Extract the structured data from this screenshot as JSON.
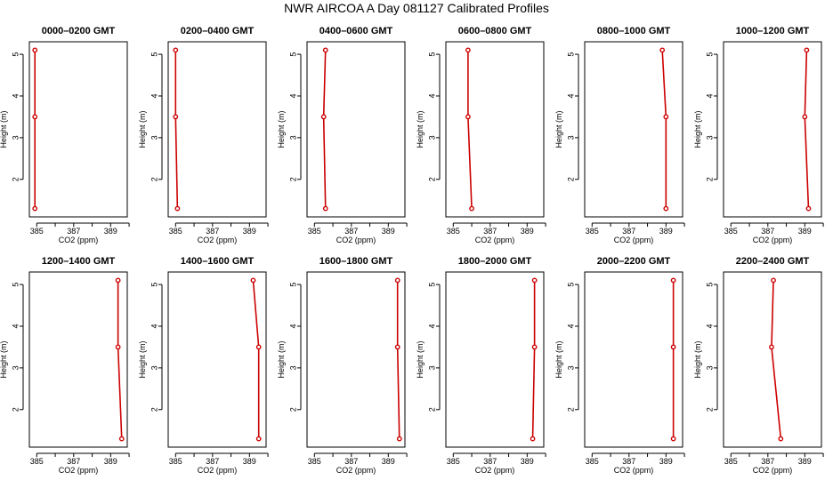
{
  "title": "NWR AIRCOA A  Day 081127  Calibrated Profiles",
  "colors": {
    "line": "#cc0000",
    "axis": "#000000"
  },
  "common": {
    "xlabel": "CO2 (ppm)",
    "ylabel": "Height (m)",
    "xlim": [
      384.6,
      389.9
    ],
    "ylim": [
      1.1,
      5.3
    ],
    "xticks": [
      385,
      386,
      387,
      388,
      389,
      390
    ],
    "xtick_labels": [
      "385",
      "",
      "387",
      "",
      "389",
      ""
    ],
    "yticks": [
      2,
      3,
      4,
      5
    ],
    "ytick_labels": [
      "2",
      "3",
      "4",
      "5"
    ]
  },
  "chart_data": [
    {
      "type": "line",
      "title": "0000–0200 GMT",
      "x": [
        384.9,
        384.9,
        384.9
      ],
      "y": [
        1.3,
        3.5,
        5.1
      ]
    },
    {
      "type": "line",
      "title": "0200–0400 GMT",
      "x": [
        385.1,
        385.0,
        385.0
      ],
      "y": [
        1.3,
        3.5,
        5.1
      ]
    },
    {
      "type": "line",
      "title": "0400–0600 GMT",
      "x": [
        385.6,
        385.5,
        385.6
      ],
      "y": [
        1.3,
        3.5,
        5.1
      ]
    },
    {
      "type": "line",
      "title": "0600–0800 GMT",
      "x": [
        386.0,
        385.8,
        385.8
      ],
      "y": [
        1.3,
        3.5,
        5.1
      ]
    },
    {
      "type": "line",
      "title": "0800–1000 GMT",
      "x": [
        389.0,
        389.0,
        388.8
      ],
      "y": [
        1.3,
        3.5,
        5.1
      ]
    },
    {
      "type": "line",
      "title": "1000–1200 GMT",
      "x": [
        389.2,
        389.0,
        389.1
      ],
      "y": [
        1.3,
        3.5,
        5.1
      ]
    },
    {
      "type": "line",
      "title": "1200–1400 GMT",
      "x": [
        389.6,
        389.4,
        389.4
      ],
      "y": [
        1.3,
        3.5,
        5.1
      ]
    },
    {
      "type": "line",
      "title": "1400–1600 GMT",
      "x": [
        389.5,
        389.5,
        389.2
      ],
      "y": [
        1.3,
        3.5,
        5.1
      ]
    },
    {
      "type": "line",
      "title": "1600–1800 GMT",
      "x": [
        389.6,
        389.5,
        389.5
      ],
      "y": [
        1.3,
        3.5,
        5.1
      ]
    },
    {
      "type": "line",
      "title": "1800–2000 GMT",
      "x": [
        389.3,
        389.4,
        389.4
      ],
      "y": [
        1.3,
        3.5,
        5.1
      ]
    },
    {
      "type": "line",
      "title": "2000–2200 GMT",
      "x": [
        389.4,
        389.4,
        389.4
      ],
      "y": [
        1.3,
        3.5,
        5.1
      ]
    },
    {
      "type": "line",
      "title": "2200–2400 GMT",
      "x": [
        387.7,
        387.2,
        387.3
      ],
      "y": [
        1.3,
        3.5,
        5.1
      ]
    }
  ]
}
